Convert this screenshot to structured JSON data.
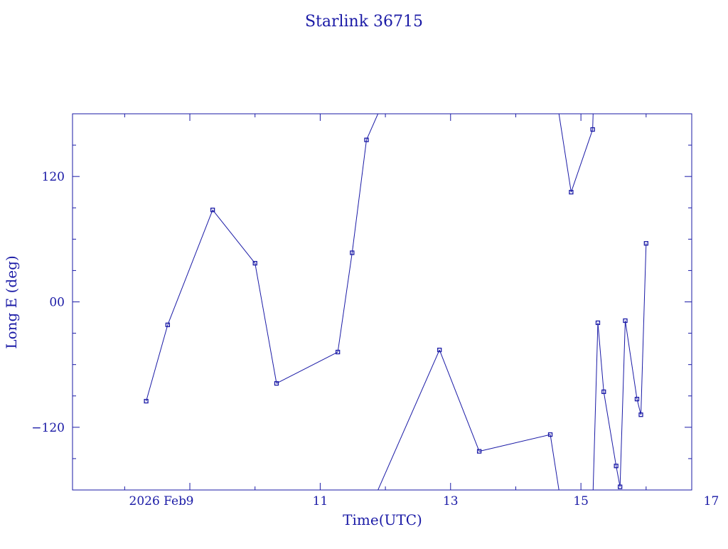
{
  "chart_data": {
    "type": "line",
    "title": "Starlink 36715",
    "xlabel": "Time(UTC)",
    "ylabel": "Long E (deg)",
    "x_axis_origin_label": "2026 Feb",
    "x_units": "day of Feb 2026 (UTC)",
    "xlim": [
      7.2,
      16.7
    ],
    "ylim": [
      -180,
      180
    ],
    "x_major_ticks": [
      9,
      11,
      13,
      15,
      17
    ],
    "x_tick_labels": [
      "9",
      "11",
      "13",
      "15",
      "17"
    ],
    "y_major_ticks": [
      -120,
      0,
      120
    ],
    "y_tick_labels": [
      "−120",
      "00",
      "120"
    ],
    "grid": false,
    "line_color": "#1a1aa6",
    "series": [
      {
        "wrap_longitude": true,
        "points": [
          {
            "x": 8.33,
            "y": -95
          },
          {
            "x": 8.66,
            "y": -22
          },
          {
            "x": 9.35,
            "y": 88
          },
          {
            "x": 10.0,
            "y": 37
          },
          {
            "x": 10.33,
            "y": -78
          },
          {
            "x": 11.27,
            "y": -48
          },
          {
            "x": 11.49,
            "y": 47
          },
          {
            "x": 11.71,
            "y": 155
          },
          {
            "x": 12.83,
            "y": -46
          },
          {
            "x": 13.44,
            "y": -143
          },
          {
            "x": 14.53,
            "y": -127
          },
          {
            "x": 14.85,
            "y": 105
          },
          {
            "x": 15.18,
            "y": 165
          },
          {
            "x": 15.26,
            "y": -20
          },
          {
            "x": 15.35,
            "y": -86
          },
          {
            "x": 15.54,
            "y": -157
          },
          {
            "x": 15.6,
            "y": -177
          },
          {
            "x": 15.68,
            "y": -18
          },
          {
            "x": 15.86,
            "y": -93
          },
          {
            "x": 15.92,
            "y": -108
          },
          {
            "x": 16.0,
            "y": 56
          }
        ]
      }
    ]
  }
}
